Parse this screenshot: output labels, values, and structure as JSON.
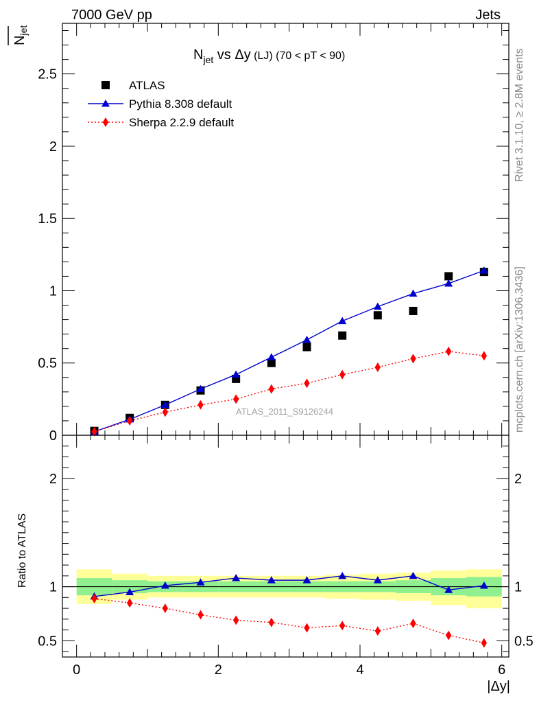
{
  "header": {
    "left": "7000 GeV pp",
    "right": "Jets"
  },
  "side_labels": {
    "rivet": "Rivet 3.1.10, ≥ 2.8M events",
    "mcplots": "mcplots.cern.ch [arXiv:1306.3436]"
  },
  "watermark": "ATLAS_2011_S9126244",
  "chart_data": [
    {
      "type": "scatter",
      "panel": "main",
      "title": {
        "prefix": "N",
        "sub": "jet",
        "mid": " vs Δy",
        "small": " (LJ) (70 < pT <  90)"
      },
      "ylabel": {
        "main": "N",
        "sub": "jet"
      },
      "xlabel": "",
      "xlim": [
        -0.2,
        6.1
      ],
      "ylim": [
        0,
        2.85
      ],
      "y_ticks": [
        "0",
        "0.5",
        "1",
        "1.5",
        "2",
        "2.5"
      ],
      "legend_position": "top-left",
      "x": [
        0.25,
        0.75,
        1.25,
        1.75,
        2.25,
        2.75,
        3.25,
        3.75,
        4.25,
        4.75,
        5.25,
        5.75
      ],
      "series": [
        {
          "name": "ATLAS",
          "color": "#000000",
          "marker": "square",
          "values": [
            0.03,
            0.12,
            0.21,
            0.31,
            0.39,
            0.5,
            0.61,
            0.69,
            0.83,
            0.86,
            1.1,
            1.13
          ]
        },
        {
          "name": "Pythia 8.308 default",
          "color": "#0000cc",
          "marker": "triangle",
          "values": [
            0.025,
            0.11,
            0.21,
            0.32,
            0.42,
            0.54,
            0.66,
            0.79,
            0.89,
            0.98,
            1.05,
            1.14
          ]
        },
        {
          "name": "Sherpa 2.2.9 default",
          "color": "#ff0000",
          "marker": "diamond",
          "dashed": true,
          "values": [
            0.025,
            0.1,
            0.16,
            0.21,
            0.25,
            0.32,
            0.36,
            0.42,
            0.47,
            0.53,
            0.58,
            0.55
          ]
        }
      ]
    },
    {
      "type": "line",
      "panel": "ratio",
      "ylabel": "Ratio to ATLAS",
      "xlabel": "|Δy|",
      "xlim": [
        -0.2,
        6.1
      ],
      "ylim": [
        0.35,
        2.4
      ],
      "x_ticks": [
        "0",
        "2",
        "4",
        "6"
      ],
      "y_ticks": [
        "0.5",
        "1",
        "2"
      ],
      "x": [
        0.25,
        0.75,
        1.25,
        1.75,
        2.25,
        2.75,
        3.25,
        3.75,
        4.25,
        4.75,
        5.25,
        5.75
      ],
      "bands": {
        "edges": [
          0,
          0.5,
          1,
          1.5,
          2,
          2.5,
          3,
          3.5,
          4,
          4.5,
          5,
          5.5,
          6
        ],
        "stat_color": "#90f090",
        "syst_color": "#ffff99",
        "stat_lo": [
          0.92,
          0.94,
          0.95,
          0.95,
          0.95,
          0.95,
          0.95,
          0.95,
          0.95,
          0.94,
          0.92,
          0.91
        ],
        "stat_hi": [
          1.08,
          1.06,
          1.05,
          1.05,
          1.05,
          1.05,
          1.05,
          1.05,
          1.05,
          1.06,
          1.08,
          1.09
        ],
        "syst_lo": [
          0.84,
          0.88,
          0.9,
          0.9,
          0.9,
          0.9,
          0.9,
          0.89,
          0.88,
          0.87,
          0.83,
          0.8
        ],
        "syst_hi": [
          1.16,
          1.12,
          1.1,
          1.1,
          1.1,
          1.1,
          1.1,
          1.11,
          1.12,
          1.13,
          1.15,
          1.16
        ]
      },
      "series": [
        {
          "name": "Pythia 8.308 default",
          "color": "#0000cc",
          "marker": "triangle",
          "values": [
            0.91,
            0.95,
            1.01,
            1.04,
            1.08,
            1.06,
            1.06,
            1.1,
            1.06,
            1.1,
            0.97,
            1.01
          ]
        },
        {
          "name": "Sherpa 2.2.9 default",
          "color": "#ff0000",
          "marker": "diamond",
          "dashed": true,
          "values": [
            0.89,
            0.85,
            0.8,
            0.74,
            0.69,
            0.67,
            0.62,
            0.64,
            0.59,
            0.66,
            0.55,
            0.48
          ]
        }
      ]
    }
  ]
}
